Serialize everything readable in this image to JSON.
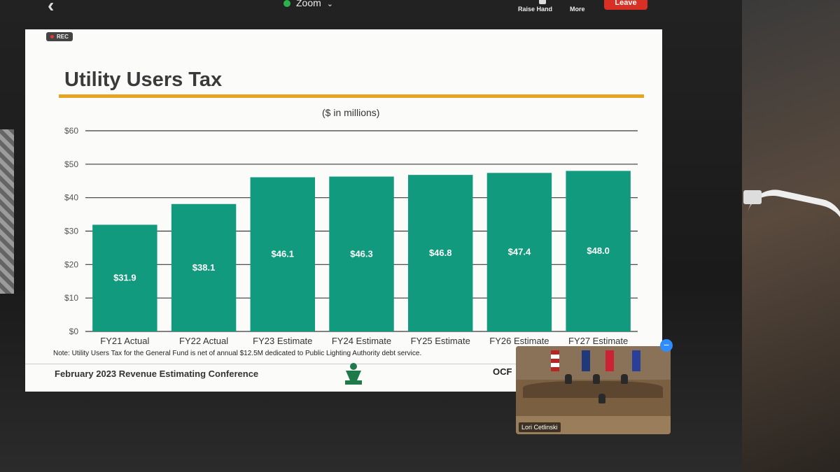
{
  "zoom": {
    "app_title": "Zoom",
    "raise_hand_label": "Raise Hand",
    "more_label": "More",
    "leave_label": "Leave",
    "rec_label": "REC",
    "video_participant": "Lori Cetlinski"
  },
  "slide": {
    "title": "Utility Users Tax",
    "note": "Note: Utility Users Tax for the General Fund is net of annual $12.5M dedicated to Public Lighting Authority debt service.",
    "footer": "February 2023 Revenue Estimating Conference",
    "footer_right": "OCF"
  },
  "chart_data": {
    "type": "bar",
    "title": "",
    "subtitle": "($ in millions)",
    "xlabel": "",
    "ylabel": "",
    "categories": [
      "FY21 Actual",
      "FY22 Actual",
      "FY23 Estimate",
      "FY24 Estimate",
      "FY25 Estimate",
      "FY26 Estimate",
      "FY27 Estimate"
    ],
    "values": [
      31.9,
      38.1,
      46.1,
      46.3,
      46.8,
      47.4,
      48.0
    ],
    "data_labels": [
      "$31.9",
      "$38.1",
      "$46.1",
      "$46.3",
      "$46.8",
      "$47.4",
      "$48.0"
    ],
    "y_ticks": [
      "$0",
      "$10",
      "$20",
      "$30",
      "$40",
      "$50",
      "$60"
    ],
    "ylim": [
      0,
      60
    ],
    "grid": true,
    "legend": "none",
    "bar_color": "#119a7e"
  }
}
